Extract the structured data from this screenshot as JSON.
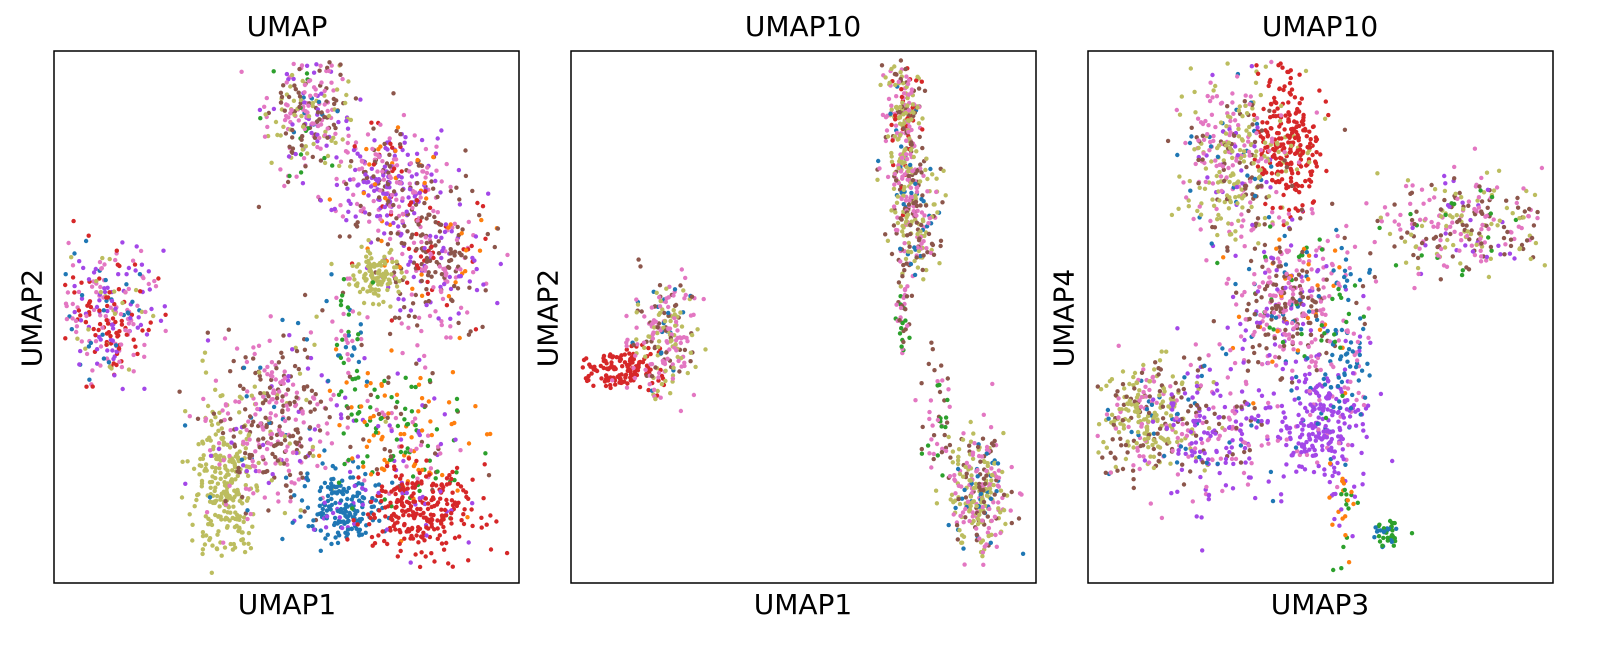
{
  "chart_data": [
    {
      "type": "scatter",
      "title": "UMAP",
      "xlabel": "UMAP1",
      "ylabel": "UMAP2",
      "xticks": "none",
      "yticks": "none",
      "legend": "none",
      "grid": false,
      "xlim": [
        0,
        10
      ],
      "ylim": [
        0,
        10
      ],
      "colors": {
        "blue": "#1f77b4",
        "orange": "#ff7f0e",
        "green": "#2ca02c",
        "red": "#d62728",
        "purple": "#a347e8",
        "brown": "#8c564b",
        "pink": "#e377c2",
        "olive": "#bcbd5f"
      },
      "clusters": [
        {
          "cx": 5.5,
          "cy": 9.0,
          "sx": 0.45,
          "sy": 0.6,
          "n": 260,
          "mix": {
            "pink": 0.35,
            "brown": 0.25,
            "olive": 0.2,
            "purple": 0.1,
            "green": 0.05,
            "blue": 0.05
          }
        },
        {
          "cx": 7.2,
          "cy": 7.6,
          "sx": 0.7,
          "sy": 0.55,
          "n": 320,
          "mix": {
            "purple": 0.4,
            "pink": 0.25,
            "brown": 0.2,
            "red": 0.08,
            "orange": 0.07
          }
        },
        {
          "cx": 8.3,
          "cy": 6.0,
          "sx": 0.65,
          "sy": 0.7,
          "n": 280,
          "mix": {
            "brown": 0.35,
            "pink": 0.3,
            "purple": 0.2,
            "red": 0.1,
            "orange": 0.05
          }
        },
        {
          "cx": 7.0,
          "cy": 5.8,
          "sx": 0.3,
          "sy": 0.25,
          "n": 110,
          "mix": {
            "olive": 1.0
          }
        },
        {
          "cx": 1.0,
          "cy": 5.0,
          "sx": 0.5,
          "sy": 0.65,
          "n": 280,
          "mix": {
            "red": 0.3,
            "purple": 0.25,
            "pink": 0.25,
            "olive": 0.1,
            "blue": 0.1
          }
        },
        {
          "cx": 3.6,
          "cy": 1.8,
          "sx": 0.35,
          "sy": 0.75,
          "n": 260,
          "mix": {
            "olive": 1.0
          }
        },
        {
          "cx": 4.7,
          "cy": 2.9,
          "sx": 0.7,
          "sy": 0.85,
          "n": 380,
          "mix": {
            "pink": 0.4,
            "brown": 0.35,
            "olive": 0.1,
            "purple": 0.1,
            "blue": 0.05
          }
        },
        {
          "cx": 6.3,
          "cy": 1.3,
          "sx": 0.45,
          "sy": 0.35,
          "n": 190,
          "mix": {
            "blue": 0.9,
            "purple": 0.1
          }
        },
        {
          "cx": 7.5,
          "cy": 2.8,
          "sx": 0.75,
          "sy": 0.75,
          "n": 220,
          "mix": {
            "green": 0.35,
            "orange": 0.3,
            "pink": 0.15,
            "brown": 0.1,
            "purple": 0.1
          }
        },
        {
          "cx": 8.0,
          "cy": 1.2,
          "sx": 0.6,
          "sy": 0.45,
          "n": 270,
          "mix": {
            "red": 0.95,
            "purple": 0.05
          }
        },
        {
          "cx": 6.3,
          "cy": 4.5,
          "sx": 0.25,
          "sy": 0.55,
          "n": 50,
          "mix": {
            "green": 0.4,
            "blue": 0.3,
            "pink": 0.3
          }
        }
      ]
    },
    {
      "type": "scatter",
      "title": "UMAP10",
      "xlabel": "UMAP1",
      "ylabel": "UMAP2",
      "xticks": "none",
      "yticks": "none",
      "legend": "none",
      "grid": false,
      "xlim": [
        0,
        10
      ],
      "ylim": [
        0,
        10
      ],
      "colors": {
        "blue": "#1f77b4",
        "orange": "#ff7f0e",
        "green": "#2ca02c",
        "red": "#d62728",
        "purple": "#a347e8",
        "brown": "#8c564b",
        "pink": "#e377c2",
        "olive": "#bcbd5f"
      },
      "clusters": [
        {
          "cx": 7.2,
          "cy": 8.6,
          "sx": 0.2,
          "sy": 0.8,
          "n": 260,
          "mix": {
            "olive": 0.35,
            "pink": 0.3,
            "brown": 0.2,
            "red": 0.08,
            "blue": 0.07
          }
        },
        {
          "cx": 7.5,
          "cy": 7.0,
          "sx": 0.25,
          "sy": 0.6,
          "n": 220,
          "mix": {
            "pink": 0.35,
            "olive": 0.3,
            "brown": 0.25,
            "blue": 0.1
          }
        },
        {
          "cx": 7.2,
          "cy": 5.0,
          "sx": 0.08,
          "sy": 0.5,
          "n": 40,
          "mix": {
            "pink": 0.4,
            "green": 0.3,
            "brown": 0.3
          }
        },
        {
          "cx": 0.9,
          "cy": 4.0,
          "sx": 0.45,
          "sy": 0.18,
          "n": 140,
          "mix": {
            "red": 1.0
          }
        },
        {
          "cx": 1.9,
          "cy": 4.6,
          "sx": 0.35,
          "sy": 0.55,
          "n": 220,
          "mix": {
            "pink": 0.4,
            "brown": 0.25,
            "olive": 0.25,
            "blue": 0.1
          }
        },
        {
          "cx": 8.9,
          "cy": 1.6,
          "sx": 0.35,
          "sy": 0.55,
          "n": 300,
          "mix": {
            "olive": 0.45,
            "pink": 0.3,
            "brown": 0.15,
            "blue": 0.1
          }
        },
        {
          "cx": 8.0,
          "cy": 3.0,
          "sx": 0.2,
          "sy": 0.6,
          "n": 50,
          "mix": {
            "green": 0.35,
            "brown": 0.35,
            "pink": 0.3
          }
        }
      ]
    },
    {
      "type": "scatter",
      "title": "UMAP10",
      "xlabel": "UMAP3",
      "ylabel": "UMAP4",
      "xticks": "none",
      "yticks": "none",
      "legend": "none",
      "grid": false,
      "xlim": [
        0,
        10
      ],
      "ylim": [
        0,
        10
      ],
      "colors": {
        "blue": "#1f77b4",
        "orange": "#ff7f0e",
        "green": "#2ca02c",
        "red": "#d62728",
        "purple": "#a347e8",
        "brown": "#8c564b",
        "pink": "#e377c2",
        "olive": "#bcbd5f"
      },
      "clusters": [
        {
          "cx": 4.3,
          "cy": 8.4,
          "sx": 0.35,
          "sy": 0.7,
          "n": 260,
          "mix": {
            "red": 0.9,
            "olive": 0.1
          }
        },
        {
          "cx": 3.1,
          "cy": 8.0,
          "sx": 0.55,
          "sy": 0.8,
          "n": 360,
          "mix": {
            "olive": 0.35,
            "pink": 0.3,
            "brown": 0.2,
            "purple": 0.1,
            "blue": 0.05
          }
        },
        {
          "cx": 4.3,
          "cy": 5.2,
          "sx": 0.65,
          "sy": 0.8,
          "n": 420,
          "mix": {
            "pink": 0.35,
            "brown": 0.3,
            "purple": 0.15,
            "blue": 0.1,
            "orange": 0.05,
            "green": 0.05
          }
        },
        {
          "cx": 8.2,
          "cy": 6.8,
          "sx": 0.85,
          "sy": 0.5,
          "n": 280,
          "mix": {
            "brown": 0.3,
            "pink": 0.3,
            "olive": 0.25,
            "purple": 0.1,
            "green": 0.05
          }
        },
        {
          "cx": 1.1,
          "cy": 3.0,
          "sx": 0.6,
          "sy": 0.55,
          "n": 300,
          "mix": {
            "olive": 0.5,
            "brown": 0.25,
            "pink": 0.2,
            "blue": 0.05
          }
        },
        {
          "cx": 2.6,
          "cy": 2.8,
          "sx": 0.7,
          "sy": 0.7,
          "n": 220,
          "mix": {
            "purple": 0.5,
            "pink": 0.25,
            "brown": 0.15,
            "blue": 0.1
          }
        },
        {
          "cx": 5.0,
          "cy": 2.9,
          "sx": 0.55,
          "sy": 0.55,
          "n": 260,
          "mix": {
            "purple": 0.8,
            "pink": 0.15,
            "blue": 0.05
          }
        },
        {
          "cx": 5.5,
          "cy": 1.2,
          "sx": 0.25,
          "sy": 0.55,
          "n": 40,
          "mix": {
            "orange": 0.4,
            "green": 0.35,
            "purple": 0.25
          }
        },
        {
          "cx": 6.5,
          "cy": 0.8,
          "sx": 0.15,
          "sy": 0.12,
          "n": 40,
          "mix": {
            "blue": 0.5,
            "green": 0.5
          }
        },
        {
          "cx": 5.5,
          "cy": 4.6,
          "sx": 0.25,
          "sy": 0.9,
          "n": 90,
          "mix": {
            "blue": 0.6,
            "green": 0.2,
            "pink": 0.2
          }
        }
      ]
    }
  ]
}
